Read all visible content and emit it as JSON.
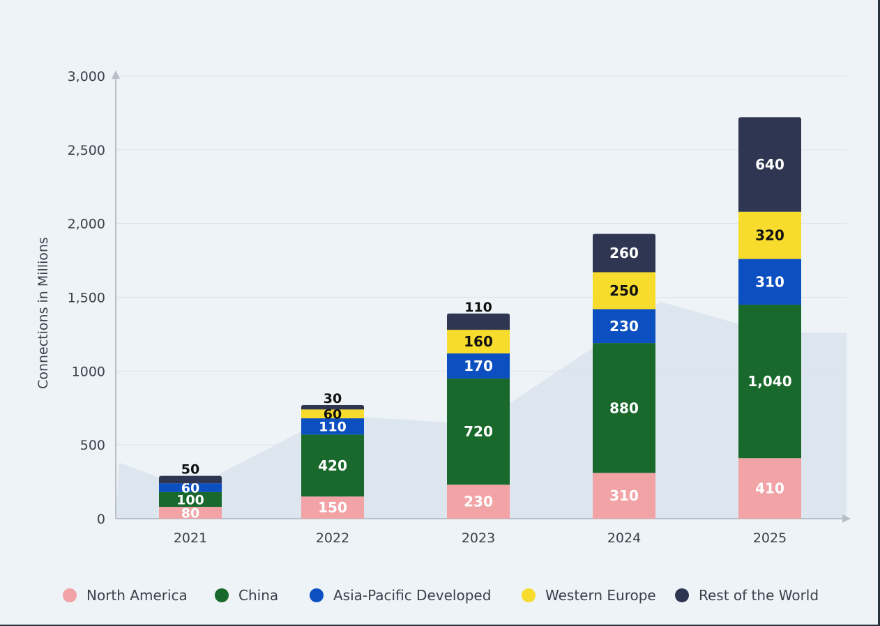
{
  "colors": {
    "background": "#edf3f7",
    "area": "#dde5ee",
    "grid": "#dde3ea",
    "axis": "#b8bfc8",
    "text": "#3a3f4a"
  },
  "chart_data": {
    "type": "bar",
    "stacked": true,
    "title": "",
    "xlabel": "",
    "ylabel": "Connections in Millions",
    "ylim": [
      0,
      3000
    ],
    "yticks": [
      0,
      500,
      1000,
      1500,
      2000,
      2500,
      3000
    ],
    "ytick_labels": [
      "0",
      "500",
      "1000",
      "1,500",
      "2,000",
      "2,500",
      "3,000"
    ],
    "grid": true,
    "legend_position": "bottom",
    "categories": [
      "2021",
      "2022",
      "2023",
      "2024",
      "2025"
    ],
    "series": [
      {
        "name": "North America",
        "color": "#f2a3a6",
        "label_color": "#ffffff",
        "values": [
          80,
          150,
          230,
          310,
          410
        ],
        "labels": [
          "80",
          "150",
          "230",
          "310",
          "410"
        ]
      },
      {
        "name": "China",
        "color": "#19692c",
        "label_color": "#ffffff",
        "values": [
          100,
          420,
          720,
          880,
          1040
        ],
        "labels": [
          "100",
          "420",
          "720",
          "880",
          "1,040"
        ]
      },
      {
        "name": "Asia-Pacific Developed",
        "color": "#0c4fc0",
        "label_color": "#ffffff",
        "values": [
          60,
          110,
          170,
          230,
          310
        ],
        "labels": [
          "60",
          "110",
          "170",
          "230",
          "310"
        ]
      },
      {
        "name": "Western Europe",
        "color": "#f7dc2d",
        "label_color": "#111111",
        "values": [
          0,
          60,
          160,
          250,
          320
        ],
        "labels": [
          "",
          "60",
          "160",
          "250",
          "320"
        ]
      },
      {
        "name": "Rest of the World",
        "color": "#2f3651",
        "label_color": "#ffffff",
        "values": [
          50,
          30,
          110,
          260,
          640
        ],
        "labels": [
          "50",
          "30",
          "110",
          "260",
          "640"
        ]
      }
    ],
    "background_area": {
      "x": [
        -0.5,
        0,
        1,
        2,
        3,
        3.25,
        4
      ],
      "y": [
        380,
        200,
        700,
        640,
        1300,
        1470,
        1260
      ]
    }
  }
}
